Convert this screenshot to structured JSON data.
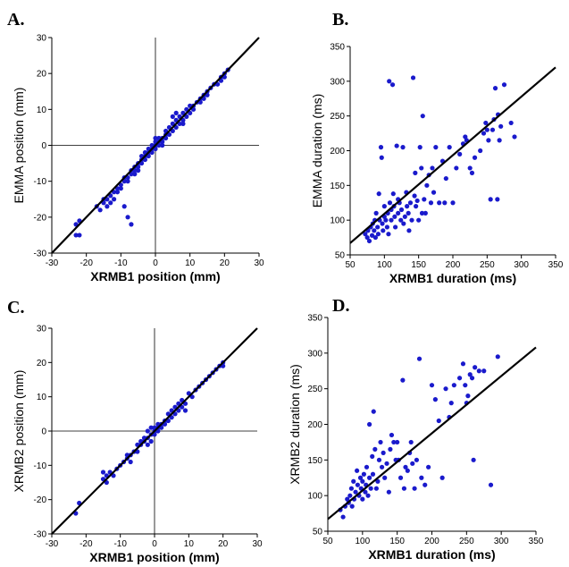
{
  "chart_data": [
    {
      "panel": "A.",
      "type": "scatter",
      "xlabel": "XRMB1 position (mm)",
      "ylabel": "EMMA position (mm)",
      "xlim": [
        -30,
        30
      ],
      "ylim": [
        -30,
        30
      ],
      "xticks": [
        -30,
        -20,
        -10,
        0,
        10,
        20,
        30
      ],
      "yticks": [
        -30,
        -20,
        -10,
        0,
        10,
        20,
        30
      ],
      "zero_lines": true,
      "fit_line": [
        [
          -30,
          -30
        ],
        [
          30,
          30
        ]
      ],
      "point_color": "#1a1acc",
      "points": [
        [
          -23,
          -25
        ],
        [
          -23,
          -22
        ],
        [
          -22,
          -21
        ],
        [
          -22,
          -25
        ],
        [
          -17,
          -17
        ],
        [
          -16,
          -18
        ],
        [
          -15,
          -15
        ],
        [
          -15,
          -16
        ],
        [
          -14,
          -17
        ],
        [
          -14,
          -15
        ],
        [
          -13,
          -16
        ],
        [
          -13,
          -14
        ],
        [
          -12,
          -13
        ],
        [
          -12,
          -15
        ],
        [
          -11,
          -12
        ],
        [
          -11,
          -13
        ],
        [
          -10,
          -11
        ],
        [
          -10,
          -12
        ],
        [
          -9,
          -10
        ],
        [
          -9,
          -9
        ],
        [
          -9,
          -17
        ],
        [
          -8,
          -9
        ],
        [
          -8,
          -10
        ],
        [
          -8,
          -20
        ],
        [
          -7,
          -8
        ],
        [
          -7,
          -7
        ],
        [
          -7,
          -22
        ],
        [
          -6,
          -7
        ],
        [
          -6,
          -8
        ],
        [
          -6,
          -6
        ],
        [
          -5,
          -6
        ],
        [
          -5,
          -5
        ],
        [
          -5,
          -7
        ],
        [
          -4,
          -5
        ],
        [
          -4,
          -4
        ],
        [
          -4,
          -3
        ],
        [
          -3,
          -4
        ],
        [
          -3,
          -3
        ],
        [
          -3,
          -2
        ],
        [
          -2,
          -3
        ],
        [
          -2,
          -2
        ],
        [
          -2,
          -1
        ],
        [
          -1,
          -2
        ],
        [
          -1,
          -1
        ],
        [
          -1,
          0
        ],
        [
          0,
          0
        ],
        [
          0,
          -1
        ],
        [
          0,
          1
        ],
        [
          0,
          2
        ],
        [
          1,
          0
        ],
        [
          1,
          1
        ],
        [
          1,
          2
        ],
        [
          2,
          1
        ],
        [
          2,
          2
        ],
        [
          2,
          0
        ],
        [
          3,
          2
        ],
        [
          3,
          3
        ],
        [
          3,
          4
        ],
        [
          4,
          3
        ],
        [
          4,
          5
        ],
        [
          5,
          4
        ],
        [
          5,
          6
        ],
        [
          5,
          8
        ],
        [
          6,
          5
        ],
        [
          6,
          7
        ],
        [
          6,
          9
        ],
        [
          7,
          6
        ],
        [
          7,
          8
        ],
        [
          8,
          7
        ],
        [
          8,
          9
        ],
        [
          8,
          6
        ],
        [
          9,
          8
        ],
        [
          9,
          10
        ],
        [
          10,
          9
        ],
        [
          10,
          11
        ],
        [
          11,
          10
        ],
        [
          11,
          11
        ],
        [
          12,
          12
        ],
        [
          13,
          13
        ],
        [
          13,
          12
        ],
        [
          14,
          14
        ],
        [
          14,
          13
        ],
        [
          15,
          15
        ],
        [
          15,
          14
        ],
        [
          16,
          16
        ],
        [
          17,
          17
        ],
        [
          18,
          17
        ],
        [
          19,
          18
        ],
        [
          19,
          19
        ],
        [
          20,
          20
        ],
        [
          20,
          19
        ],
        [
          21,
          21
        ]
      ]
    },
    {
      "panel": "B.",
      "type": "scatter",
      "xlabel": "XRMB1 duration (ms)",
      "ylabel": "EMMA duration (ms)",
      "xlim": [
        50,
        350
      ],
      "ylim": [
        50,
        350
      ],
      "xticks": [
        50,
        100,
        150,
        200,
        250,
        300,
        350
      ],
      "yticks": [
        50,
        100,
        150,
        200,
        250,
        300,
        350
      ],
      "zero_lines": false,
      "fit_line": [
        [
          50,
          67
        ],
        [
          350,
          320
        ]
      ],
      "point_color": "#1a1acc",
      "points": [
        [
          72,
          80
        ],
        [
          75,
          75
        ],
        [
          76,
          85
        ],
        [
          78,
          70
        ],
        [
          80,
          90
        ],
        [
          82,
          78
        ],
        [
          83,
          95
        ],
        [
          85,
          85
        ],
        [
          86,
          100
        ],
        [
          87,
          75
        ],
        [
          88,
          110
        ],
        [
          90,
          90
        ],
        [
          91,
          80
        ],
        [
          92,
          138
        ],
        [
          93,
          100
        ],
        [
          95,
          205
        ],
        [
          96,
          190
        ],
        [
          97,
          95
        ],
        [
          98,
          85
        ],
        [
          100,
          120
        ],
        [
          100,
          105
        ],
        [
          102,
          100
        ],
        [
          104,
          90
        ],
        [
          105,
          110
        ],
        [
          106,
          80
        ],
        [
          107,
          300
        ],
        [
          108,
          125
        ],
        [
          110,
          100
        ],
        [
          110,
          115
        ],
        [
          112,
          295
        ],
        [
          113,
          138
        ],
        [
          114,
          120
        ],
        [
          115,
          105
        ],
        [
          116,
          90
        ],
        [
          118,
          207
        ],
        [
          120,
          110
        ],
        [
          120,
          130
        ],
        [
          122,
          125
        ],
        [
          124,
          100
        ],
        [
          125,
          115
        ],
        [
          127,
          205
        ],
        [
          128,
          95
        ],
        [
          130,
          105
        ],
        [
          132,
          140
        ],
        [
          133,
          120
        ],
        [
          135,
          110
        ],
        [
          136,
          85
        ],
        [
          138,
          125
        ],
        [
          140,
          100
        ],
        [
          142,
          305
        ],
        [
          144,
          135
        ],
        [
          145,
          168
        ],
        [
          146,
          120
        ],
        [
          148,
          128
        ],
        [
          150,
          100
        ],
        [
          152,
          205
        ],
        [
          154,
          175
        ],
        [
          155,
          110
        ],
        [
          156,
          250
        ],
        [
          158,
          130
        ],
        [
          160,
          110
        ],
        [
          162,
          150
        ],
        [
          165,
          165
        ],
        [
          168,
          125
        ],
        [
          170,
          175
        ],
        [
          172,
          140
        ],
        [
          175,
          205
        ],
        [
          180,
          125
        ],
        [
          185,
          185
        ],
        [
          188,
          125
        ],
        [
          190,
          160
        ],
        [
          195,
          205
        ],
        [
          200,
          125
        ],
        [
          205,
          175
        ],
        [
          210,
          195
        ],
        [
          215,
          210
        ],
        [
          218,
          220
        ],
        [
          220,
          215
        ],
        [
          225,
          175
        ],
        [
          228,
          168
        ],
        [
          232,
          190
        ],
        [
          240,
          200
        ],
        [
          245,
          225
        ],
        [
          248,
          240
        ],
        [
          250,
          230
        ],
        [
          252,
          215
        ],
        [
          255,
          130
        ],
        [
          258,
          230
        ],
        [
          260,
          245
        ],
        [
          262,
          290
        ],
        [
          265,
          130
        ],
        [
          266,
          252
        ],
        [
          268,
          215
        ],
        [
          270,
          235
        ],
        [
          275,
          295
        ],
        [
          285,
          240
        ],
        [
          290,
          220
        ]
      ]
    },
    {
      "panel": "C.",
      "type": "scatter",
      "xlabel": "XRMB1 position (mm)",
      "ylabel": "XRMB2 position (mm)",
      "xlim": [
        -30,
        30
      ],
      "ylim": [
        -30,
        30
      ],
      "xticks": [
        -30,
        -20,
        -10,
        0,
        10,
        20,
        30
      ],
      "yticks": [
        -30,
        -20,
        -10,
        0,
        10,
        20,
        30
      ],
      "zero_lines": true,
      "fit_line": [
        [
          -30,
          -30
        ],
        [
          30,
          30
        ]
      ],
      "point_color": "#1a1acc",
      "points": [
        [
          -23,
          -24
        ],
        [
          -22,
          -21
        ],
        [
          -15,
          -14
        ],
        [
          -15,
          -12
        ],
        [
          -14,
          -15
        ],
        [
          -14,
          -13
        ],
        [
          -13,
          -12
        ],
        [
          -12,
          -13
        ],
        [
          -11,
          -11
        ],
        [
          -10,
          -10
        ],
        [
          -9,
          -9
        ],
        [
          -8,
          -8
        ],
        [
          -8,
          -7
        ],
        [
          -7,
          -7
        ],
        [
          -7,
          -9
        ],
        [
          -6,
          -6
        ],
        [
          -5,
          -6
        ],
        [
          -5,
          -4
        ],
        [
          -4,
          -4
        ],
        [
          -4,
          -3
        ],
        [
          -3,
          -3
        ],
        [
          -3,
          -2
        ],
        [
          -2,
          -2
        ],
        [
          -2,
          -4
        ],
        [
          -2,
          0
        ],
        [
          -1,
          -1
        ],
        [
          -1,
          -3
        ],
        [
          -1,
          1
        ],
        [
          0,
          0
        ],
        [
          0,
          1
        ],
        [
          0,
          -1
        ],
        [
          1,
          1
        ],
        [
          1,
          0
        ],
        [
          1,
          2
        ],
        [
          2,
          2
        ],
        [
          2,
          1
        ],
        [
          3,
          3
        ],
        [
          3,
          2
        ],
        [
          4,
          3
        ],
        [
          4,
          5
        ],
        [
          5,
          4
        ],
        [
          5,
          6
        ],
        [
          6,
          5
        ],
        [
          6,
          7
        ],
        [
          7,
          6
        ],
        [
          7,
          8
        ],
        [
          8,
          7
        ],
        [
          8,
          9
        ],
        [
          9,
          8
        ],
        [
          9,
          6
        ],
        [
          10,
          11
        ],
        [
          11,
          10
        ],
        [
          12,
          12
        ],
        [
          13,
          13
        ],
        [
          14,
          14
        ],
        [
          15,
          15
        ],
        [
          16,
          16
        ],
        [
          17,
          17
        ],
        [
          18,
          18
        ],
        [
          19,
          19
        ],
        [
          20,
          20
        ],
        [
          20,
          19
        ]
      ]
    },
    {
      "panel": "D.",
      "type": "scatter",
      "xlabel": "XRMB1 duration (ms)",
      "ylabel": "XRMB2 duration (ms)",
      "xlim": [
        50,
        350
      ],
      "ylim": [
        50,
        350
      ],
      "xticks": [
        50,
        100,
        150,
        200,
        250,
        300,
        350
      ],
      "yticks": [
        50,
        100,
        150,
        200,
        250,
        300,
        350
      ],
      "zero_lines": false,
      "fit_line": [
        [
          50,
          67
        ],
        [
          350,
          308
        ]
      ],
      "point_color": "#1a1acc",
      "points": [
        [
          68,
          80
        ],
        [
          72,
          70
        ],
        [
          75,
          85
        ],
        [
          78,
          95
        ],
        [
          80,
          90
        ],
        [
          82,
          100
        ],
        [
          84,
          110
        ],
        [
          85,
          85
        ],
        [
          87,
          120
        ],
        [
          88,
          95
        ],
        [
          90,
          105
        ],
        [
          92,
          135
        ],
        [
          93,
          115
        ],
        [
          95,
          100
        ],
        [
          97,
          125
        ],
        [
          98,
          110
        ],
        [
          100,
          120
        ],
        [
          100,
          95
        ],
        [
          102,
          130
        ],
        [
          104,
          105
        ],
        [
          105,
          115
        ],
        [
          106,
          140
        ],
        [
          108,
          100
        ],
        [
          110,
          125
        ],
        [
          110,
          200
        ],
        [
          112,
          110
        ],
        [
          114,
          155
        ],
        [
          115,
          130
        ],
        [
          116,
          218
        ],
        [
          118,
          165
        ],
        [
          120,
          110
        ],
        [
          122,
          120
        ],
        [
          124,
          150
        ],
        [
          126,
          175
        ],
        [
          128,
          140
        ],
        [
          130,
          160
        ],
        [
          132,
          125
        ],
        [
          135,
          145
        ],
        [
          138,
          105
        ],
        [
          140,
          165
        ],
        [
          142,
          185
        ],
        [
          145,
          175
        ],
        [
          148,
          150
        ],
        [
          150,
          175
        ],
        [
          152,
          150
        ],
        [
          155,
          125
        ],
        [
          158,
          262
        ],
        [
          160,
          110
        ],
        [
          162,
          140
        ],
        [
          165,
          135
        ],
        [
          168,
          160
        ],
        [
          170,
          175
        ],
        [
          172,
          145
        ],
        [
          175,
          110
        ],
        [
          178,
          150
        ],
        [
          182,
          292
        ],
        [
          185,
          125
        ],
        [
          190,
          115
        ],
        [
          195,
          140
        ],
        [
          200,
          255
        ],
        [
          205,
          235
        ],
        [
          210,
          205
        ],
        [
          215,
          125
        ],
        [
          220,
          250
        ],
        [
          225,
          210
        ],
        [
          228,
          230
        ],
        [
          232,
          255
        ],
        [
          240,
          265
        ],
        [
          245,
          285
        ],
        [
          248,
          255
        ],
        [
          250,
          230
        ],
        [
          252,
          240
        ],
        [
          255,
          270
        ],
        [
          258,
          265
        ],
        [
          260,
          150
        ],
        [
          262,
          280
        ],
        [
          268,
          275
        ],
        [
          275,
          275
        ],
        [
          285,
          115
        ],
        [
          295,
          295
        ]
      ]
    }
  ]
}
